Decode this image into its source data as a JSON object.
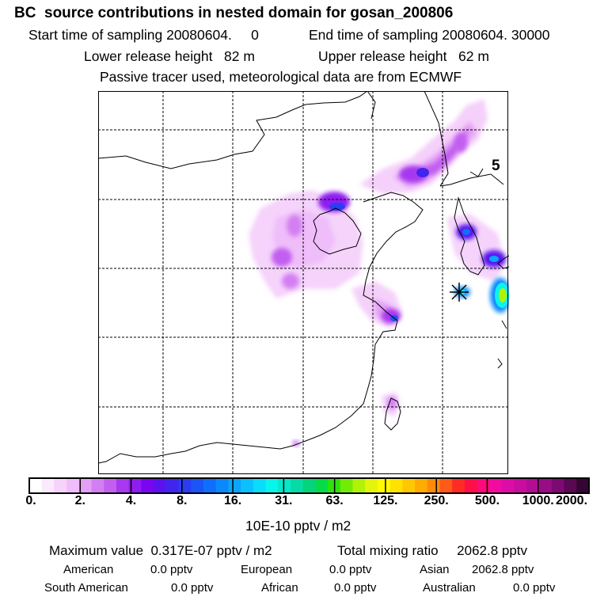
{
  "header": {
    "title": "BC  source contributions in nested domain for gosan_200806",
    "start_time": "Start time of sampling 20080604.     0",
    "end_time": "End time of sampling 20080604. 30000",
    "lower_release": "Lower release height   82 m",
    "upper_release": "Upper release height   62 m",
    "passive_line": "Passive tracer used, meteorological data are from ECMWF"
  },
  "map": {
    "corner_label": "5",
    "receptor_marker": "star-marker"
  },
  "colorbar": {
    "ticks": [
      "0.",
      "2.",
      "4.",
      "8.",
      "16.",
      "31.",
      "63.",
      "125.",
      "250.",
      "500.",
      "1000.",
      "2000."
    ],
    "colors": [
      "#ffffff",
      "#fbe9fd",
      "#f5d3fb",
      "#efbdf9",
      "#e4a0f6",
      "#d37ff3",
      "#c35ff0",
      "#a839ef",
      "#8f1df0",
      "#7a05f0",
      "#5a13ef",
      "#4125ef",
      "#2b3df3",
      "#1b55f8",
      "#0f6ffc",
      "#0a89fd",
      "#0aa5fd",
      "#0ac0fd",
      "#0adcfb",
      "#08f5ec",
      "#06e8c9",
      "#05dca5",
      "#04d57c",
      "#05db46",
      "#2de30c",
      "#72ec06",
      "#b0f208",
      "#e3f50b",
      "#fffa00",
      "#ffe200",
      "#ffc700",
      "#ffab00",
      "#ff8a0a",
      "#ff5a17",
      "#ff2b25",
      "#ff0f48",
      "#ff0a79",
      "#f20aa1",
      "#dc0ca9",
      "#c80d9f",
      "#b20d94",
      "#990c85",
      "#7d0a72",
      "#5a0851",
      "#350535"
    ],
    "units": "10E-10 pptv / m2"
  },
  "summary": {
    "max_value": "Maximum value  0.317E-07 pptv / m2",
    "total_mixing": "Total mixing ratio     2062.8 pptv",
    "american_label": "American",
    "american_value": "0.0 pptv",
    "european_label": "European",
    "european_value": "0.0 pptv",
    "asian_label": "Asian",
    "asian_value": "2062.8 pptv",
    "south_american_label": "South American",
    "south_american_value": "0.0 pptv",
    "african_label": "African",
    "african_value": "0.0 pptv",
    "australian_label": "Australian",
    "australian_value": "0.0 pptv"
  }
}
